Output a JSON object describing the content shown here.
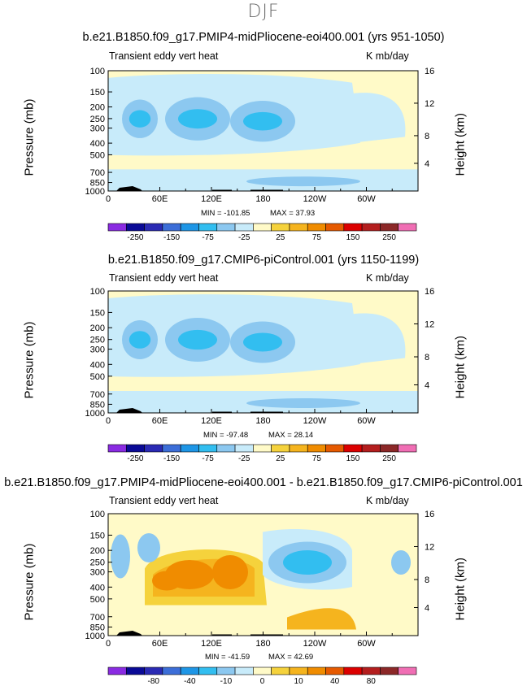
{
  "page_title": "DJF",
  "chart_data": [
    {
      "type": "heatmap",
      "title": "b.e21.B1850.f09_g17.PMIP4-midPliocene-eoi400.001 (yrs 951-1050)",
      "subtitle_left": "Transient eddy vert heat",
      "subtitle_right": "K mb/day",
      "ylabel": "Pressure  (mb)",
      "ylabel_right": "Height  (km)",
      "x_ticks": [
        "0",
        "60E",
        "120E",
        "180",
        "120W",
        "60W"
      ],
      "y_ticks": [
        "100",
        "150",
        "200",
        "250",
        "300",
        "400",
        "500",
        "700",
        "850",
        "1000"
      ],
      "y_ticks_right": [
        "16",
        "12",
        "8",
        "4"
      ],
      "min_label": "MIN = -101.85",
      "max_label": "MAX =  37.93",
      "colorbar_labels": [
        "-250",
        "-150",
        "-75",
        "-25",
        "25",
        "75",
        "150",
        "250"
      ]
    },
    {
      "type": "heatmap",
      "title": "b.e21.B1850.f09_g17.CMIP6-piControl.001 (yrs 1150-1199)",
      "subtitle_left": "Transient eddy vert heat",
      "subtitle_right": "K mb/day",
      "ylabel": "Pressure  (mb)",
      "ylabel_right": "Height  (km)",
      "x_ticks": [
        "0",
        "60E",
        "120E",
        "180",
        "120W",
        "60W"
      ],
      "y_ticks": [
        "100",
        "150",
        "200",
        "250",
        "300",
        "400",
        "500",
        "700",
        "850",
        "1000"
      ],
      "y_ticks_right": [
        "16",
        "12",
        "8",
        "4"
      ],
      "min_label": "MIN = -97.48",
      "max_label": "MAX =  28.14",
      "colorbar_labels": [
        "-250",
        "-150",
        "-75",
        "-25",
        "25",
        "75",
        "150",
        "250"
      ]
    },
    {
      "type": "heatmap",
      "title": "b.e21.B1850.f09_g17.PMIP4-midPliocene-eoi400.001 - b.e21.B1850.f09_g17.CMIP6-piControl.001",
      "subtitle_left": "Transient eddy vert heat",
      "subtitle_right": "K mb/day",
      "ylabel": "Pressure  (mb)",
      "ylabel_right": "Height  (km)",
      "x_ticks": [
        "0",
        "60E",
        "120E",
        "180",
        "120W",
        "60W"
      ],
      "y_ticks": [
        "100",
        "150",
        "200",
        "250",
        "300",
        "400",
        "500",
        "700",
        "850",
        "1000"
      ],
      "y_ticks_right": [
        "16",
        "12",
        "8",
        "4"
      ],
      "min_label": "MIN = -41.59",
      "max_label": "MAX =  42.69",
      "colorbar_labels": [
        "-80",
        "-40",
        "-10",
        "0",
        "10",
        "40",
        "80"
      ]
    }
  ],
  "colors": {
    "palette": [
      "#8a2be2",
      "#0a0a96",
      "#2a2ab4",
      "#3c6ed8",
      "#1e96e6",
      "#32bef0",
      "#8cc8f0",
      "#c8ebfa",
      "#fffac8",
      "#f5d23c",
      "#f5b41e",
      "#f08c00",
      "#e65a00",
      "#dc0000",
      "#b41e1e",
      "#8c2828",
      "#f06eb4"
    ],
    "panel1_regions": {
      "bg": "#fffac8",
      "band": "#c8ebfa",
      "core": "#8cc8f0",
      "peak": "#32bef0",
      "terrain": "#000000"
    },
    "panel3_regions": {
      "bg": "#fffac8",
      "pos1": "#f5d23c",
      "pos2": "#f5b41e",
      "pos3": "#f08c00",
      "neg1": "#c8ebfa",
      "neg2": "#8cc8f0",
      "neg3": "#32bef0",
      "terrain": "#000000"
    }
  }
}
